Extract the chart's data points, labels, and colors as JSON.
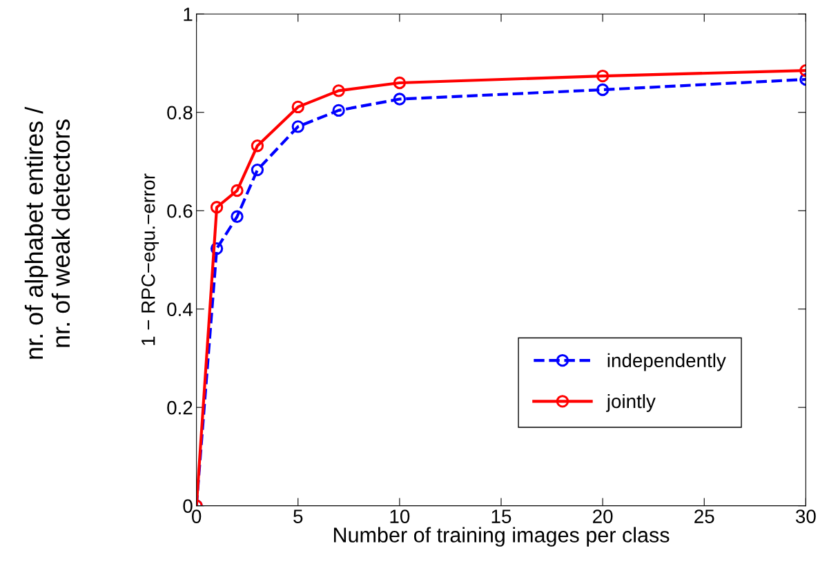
{
  "chart_data": {
    "type": "line",
    "xlabel": "Number of training images per class",
    "ylabel": "1 − RPC−equ.−error",
    "annotations": [
      "nr. of alphabet entires /\nnr. of weak detectors"
    ],
    "x": [
      0,
      1,
      2,
      3,
      5,
      7,
      10,
      20,
      30
    ],
    "series": [
      {
        "name": "independently",
        "color": "#0000ff",
        "line_style": "dashed",
        "values": [
          0,
          0.523,
          0.588,
          0.683,
          0.771,
          0.804,
          0.827,
          0.846,
          0.867
        ]
      },
      {
        "name": "jointly",
        "color": "#ff0000",
        "line_style": "solid",
        "values": [
          0,
          0.607,
          0.641,
          0.732,
          0.811,
          0.844,
          0.86,
          0.874,
          0.885
        ]
      }
    ],
    "marker": "circle",
    "xlim": [
      0,
      30
    ],
    "ylim": [
      0,
      1
    ],
    "xticks": [
      0,
      5,
      10,
      15,
      20,
      25,
      30
    ],
    "yticks": [
      0,
      0.2,
      0.4,
      0.6,
      0.8,
      1
    ],
    "grid": false,
    "legend": "bottom right"
  }
}
